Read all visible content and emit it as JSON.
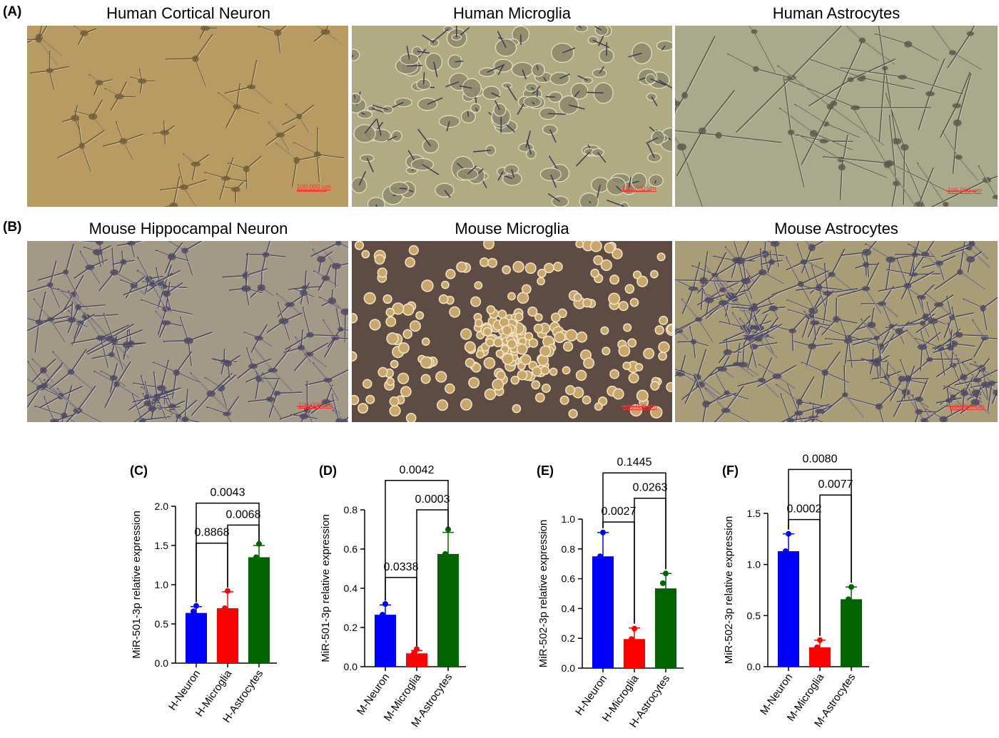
{
  "panels": {
    "A": {
      "letter": "(A)",
      "images": [
        {
          "title": "Human Cortical Neuron",
          "scale": "100.000 µm",
          "bg": "#b89b62",
          "kind": "neuron"
        },
        {
          "title": "Human Microglia",
          "scale": "100.000 µm",
          "bg": "#b0ab82",
          "kind": "mixed"
        },
        {
          "title": "Human Astrocytes",
          "scale": "100.000 µm",
          "bg": "#a9a98b",
          "kind": "spindle"
        }
      ]
    },
    "B": {
      "letter": "(B)",
      "images": [
        {
          "title": "Mouse Hippocampal Neuron",
          "scale": "100.000 µm",
          "bg": "#a29a86",
          "kind": "star"
        },
        {
          "title": "Mouse Microglia",
          "scale": "100.000 µm",
          "bg": "#5e4c44",
          "kind": "round"
        },
        {
          "title": "Mouse Astrocytes",
          "scale": "100.000 µm",
          "bg": "#a89d76",
          "kind": "network"
        }
      ]
    }
  },
  "colors": {
    "blue": "#0000ff",
    "red": "#ff0000",
    "green": "#006400"
  },
  "chart_data": [
    {
      "letter": "(C)",
      "type": "bar",
      "categories": [
        "H-Neuron",
        "H-Microglia",
        "H-Astrocytes"
      ],
      "values": [
        0.64,
        0.7,
        1.35
      ],
      "errors": [
        0.08,
        0.21,
        0.15
      ],
      "points": [
        [
          0.73,
          0.66
        ],
        [
          0.92,
          0.7
        ],
        [
          1.52,
          1.35
        ]
      ],
      "ylabel": "MiR-501-3p relative expression",
      "ylim": [
        0,
        2.0
      ],
      "yticks": [
        "0.0",
        "0.5",
        "1.0",
        "1.5",
        "2.0"
      ],
      "comparisons": [
        {
          "from": 0,
          "to": 1,
          "p": "0.8868",
          "level": 1.53
        },
        {
          "from": 1,
          "to": 2,
          "p": "0.0068",
          "level": 1.76
        },
        {
          "from": 0,
          "to": 2,
          "p": "0.0043",
          "level": 2.04
        }
      ]
    },
    {
      "letter": "(D)",
      "type": "bar",
      "categories": [
        "M-Neuron",
        "M-Microglia",
        "M-Astrocytes"
      ],
      "values": [
        0.265,
        0.068,
        0.575
      ],
      "errors": [
        0.05,
        0.015,
        0.11
      ],
      "points": [
        [
          0.32,
          0.265
        ],
        [
          0.09,
          0.068
        ],
        [
          0.7,
          0.575
        ]
      ],
      "ylabel": "MiR-501-3p relative expression",
      "ylim": [
        0,
        0.8
      ],
      "yticks": [
        "0.0",
        "0.2",
        "0.4",
        "0.6",
        "0.8"
      ],
      "comparisons": [
        {
          "from": 0,
          "to": 1,
          "p": "0.0338",
          "level": 0.455
        },
        {
          "from": 1,
          "to": 2,
          "p": "0.0003",
          "level": 0.8
        },
        {
          "from": 0,
          "to": 2,
          "p": "0.0042",
          "level": 0.95
        }
      ]
    },
    {
      "letter": "(E)",
      "type": "bar",
      "categories": [
        "H-Neuron",
        "H-Microglia",
        "H-Astrocytes"
      ],
      "values": [
        0.75,
        0.195,
        0.535
      ],
      "errors": [
        0.16,
        0.075,
        0.1
      ],
      "points": [
        [
          0.91,
          0.75
        ],
        [
          0.265,
          0.195
        ],
        [
          0.635,
          0.57
        ]
      ],
      "ylabel": "MiR-502-3p relative expression",
      "ylim": [
        0,
        1.0
      ],
      "yticks": [
        "0.0",
        "0.2",
        "0.4",
        "0.6",
        "0.8",
        "1.0"
      ],
      "comparisons": [
        {
          "from": 0,
          "to": 1,
          "p": "0.0027",
          "level": 0.98
        },
        {
          "from": 1,
          "to": 2,
          "p": "0.0263",
          "level": 1.14
        },
        {
          "from": 0,
          "to": 2,
          "p": "0.1445",
          "level": 1.31
        }
      ]
    },
    {
      "letter": "(F)",
      "type": "bar",
      "categories": [
        "M-Neuron",
        "M-Microglia",
        "M-Astrocytes"
      ],
      "values": [
        1.13,
        0.19,
        0.66
      ],
      "errors": [
        0.17,
        0.07,
        0.12
      ],
      "points": [
        [
          1.3,
          1.13
        ],
        [
          0.26,
          0.19
        ],
        [
          0.78,
          0.66
        ]
      ],
      "ylabel": "MiR-502-3p relative expression",
      "ylim": [
        0,
        1.5
      ],
      "yticks": [
        "0.0",
        "0.5",
        "1.0",
        "1.5"
      ],
      "comparisons": [
        {
          "from": 0,
          "to": 1,
          "p": "0.0002",
          "level": 1.44
        },
        {
          "from": 1,
          "to": 2,
          "p": "0.0077",
          "level": 1.68
        },
        {
          "from": 0,
          "to": 2,
          "p": "0.0080",
          "level": 1.93
        }
      ]
    }
  ]
}
